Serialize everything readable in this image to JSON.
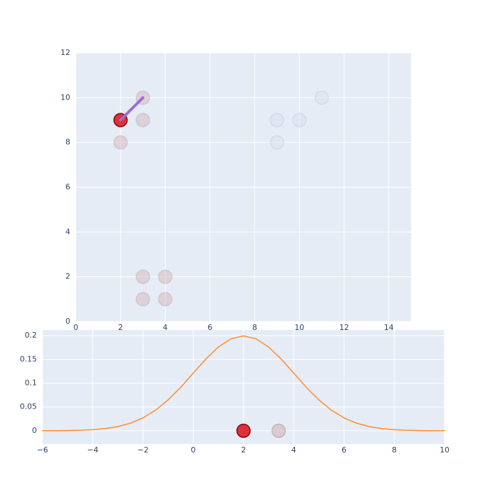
{
  "chart_data": [
    {
      "type": "scatter",
      "xlim": [
        0,
        15
      ],
      "ylim": [
        0,
        12
      ],
      "xticks": [
        0,
        2,
        4,
        6,
        8,
        10,
        12,
        14
      ],
      "yticks": [
        0,
        2,
        4,
        6,
        8,
        10,
        12
      ],
      "grid": true,
      "series": [
        {
          "color": "#e0303a",
          "stroke": "#7a0a0a",
          "opacity": 1,
          "x": [
            2
          ],
          "values": [
            9
          ]
        },
        {
          "color": "#cfa9a9",
          "stroke": "#b08a8a",
          "opacity": 0.4,
          "x": [
            3,
            3,
            2,
            3,
            4,
            3,
            4
          ],
          "values": [
            10,
            9,
            8,
            2,
            2,
            1,
            1
          ]
        },
        {
          "color": "#dfe2ee",
          "stroke": "#c9ccdc",
          "opacity": 0.6,
          "x": [
            9,
            10,
            9,
            11
          ],
          "values": [
            9,
            9,
            8,
            10
          ]
        }
      ],
      "segments": [
        {
          "color": "#9b6bd6",
          "x": [
            2,
            3
          ],
          "values": [
            9,
            10
          ]
        }
      ]
    },
    {
      "type": "line",
      "xlim": [
        -6,
        10
      ],
      "ylim": [
        -0.028,
        0.212
      ],
      "xticks": [
        {
          "value": -6,
          "label": "−6"
        },
        {
          "value": -4,
          "label": "−4"
        },
        {
          "value": -2,
          "label": "−2"
        },
        0,
        2,
        4,
        6,
        8,
        10
      ],
      "yticks": [
        0,
        0.05,
        0.1,
        0.15,
        0.2
      ],
      "grid": true,
      "x": [
        -6,
        -5.5,
        -5,
        -4.5,
        -4,
        -3.5,
        -3,
        -2.5,
        -2,
        -1.5,
        -1,
        -0.5,
        0,
        0.5,
        1,
        1.5,
        2,
        2.5,
        3,
        3.5,
        4,
        4.5,
        5,
        5.5,
        6,
        6.5,
        7,
        7.5,
        8,
        8.5,
        9,
        9.5,
        10
      ],
      "series": [
        {
          "color": "#ff8c2a",
          "values": [
            0.0001,
            0.0002,
            0.0004,
            0.001,
            0.0022,
            0.0045,
            0.0088,
            0.0159,
            0.027,
            0.0431,
            0.0648,
            0.0913,
            0.121,
            0.1506,
            0.176,
            0.1933,
            0.1995,
            0.1933,
            0.176,
            0.1506,
            0.121,
            0.0913,
            0.0648,
            0.0431,
            0.027,
            0.0159,
            0.0088,
            0.0045,
            0.0022,
            0.001,
            0.0004,
            0.0002,
            0.0001
          ]
        }
      ],
      "markers": [
        {
          "color": "#e0303a",
          "stroke": "#7a0a0a",
          "opacity": 1,
          "x": [
            2
          ],
          "values": [
            0
          ]
        },
        {
          "color": "#cfa9a9",
          "stroke": "#9a7a7a",
          "opacity": 0.5,
          "x": [
            3.4
          ],
          "values": [
            0
          ]
        }
      ]
    }
  ]
}
